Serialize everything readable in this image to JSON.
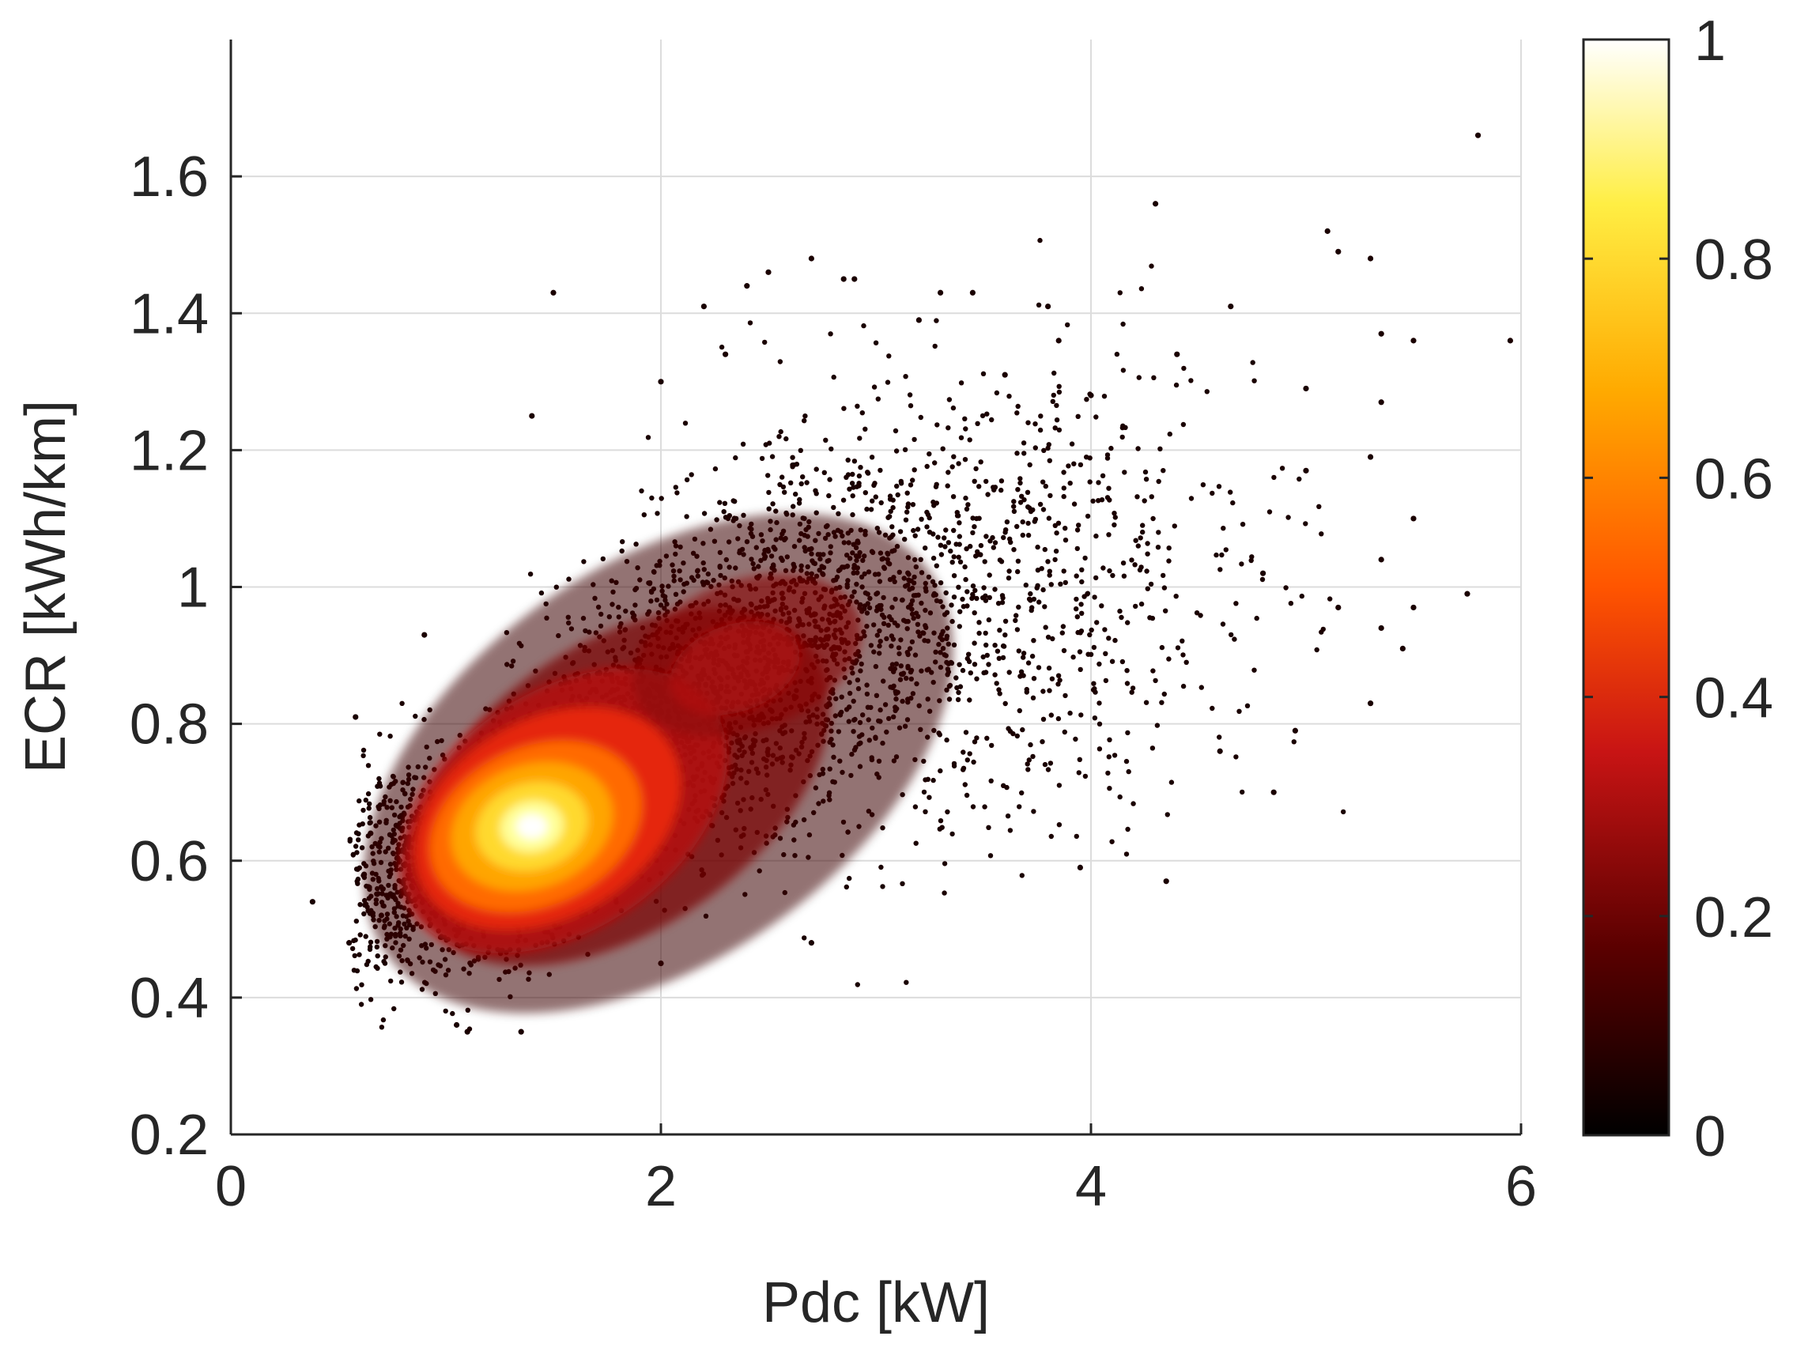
{
  "chart_data": {
    "type": "scatter",
    "xlabel": "Pdc [kW]",
    "ylabel": "ECR [kWh/km]",
    "xlim": [
      0,
      6
    ],
    "ylim": [
      0.2,
      1.8
    ],
    "xticks": [
      "0",
      "2",
      "4",
      "6"
    ],
    "yticks": [
      "0.2",
      "0.4",
      "0.6",
      "0.8",
      "1",
      "1.2",
      "1.4",
      "1.6"
    ],
    "grid": true,
    "colormap": "hot",
    "colorbar": {
      "label_ticks": [
        "0",
        "0.2",
        "0.4",
        "0.6",
        "0.8",
        "1"
      ],
      "range": [
        0,
        1
      ],
      "colors": [
        "#000000",
        "#5a0000",
        "#c81414",
        "#ff5500",
        "#ffaa00",
        "#ffee44",
        "#ffffff"
      ]
    },
    "density_description": "point density; peak near (1.4, 0.65)",
    "density_peak": {
      "x": 1.4,
      "y": 0.65
    },
    "sample_points": [
      [
        0.38,
        0.54
      ],
      [
        0.55,
        0.48
      ],
      [
        0.58,
        0.81
      ],
      [
        0.9,
        0.93
      ],
      [
        1.05,
        0.36
      ],
      [
        1.1,
        0.35
      ],
      [
        1.35,
        0.35
      ],
      [
        1.5,
        1.43
      ],
      [
        1.4,
        1.25
      ],
      [
        2.0,
        1.3
      ],
      [
        2.2,
        1.41
      ],
      [
        2.3,
        1.34
      ],
      [
        2.4,
        1.44
      ],
      [
        2.5,
        1.46
      ],
      [
        2.7,
        1.48
      ],
      [
        2.85,
        1.45
      ],
      [
        2.9,
        1.45
      ],
      [
        3.2,
        1.39
      ],
      [
        3.3,
        1.43
      ],
      [
        3.45,
        1.43
      ],
      [
        3.6,
        1.31
      ],
      [
        3.8,
        1.41
      ],
      [
        3.85,
        1.36
      ],
      [
        4.3,
        1.56
      ],
      [
        4.65,
        1.41
      ],
      [
        5.1,
        1.52
      ],
      [
        5.15,
        1.49
      ],
      [
        5.3,
        1.48
      ],
      [
        5.35,
        1.37
      ],
      [
        5.5,
        1.36
      ],
      [
        5.8,
        1.66
      ],
      [
        5.95,
        1.36
      ],
      [
        5.0,
        1.29
      ],
      [
        5.3,
        1.19
      ],
      [
        5.35,
        1.27
      ],
      [
        5.5,
        1.1
      ],
      [
        5.35,
        1.04
      ],
      [
        5.15,
        0.97
      ],
      [
        5.5,
        0.97
      ],
      [
        5.75,
        0.99
      ],
      [
        5.35,
        0.94
      ],
      [
        5.45,
        0.91
      ],
      [
        5.3,
        0.83
      ],
      [
        4.95,
        0.79
      ],
      [
        4.85,
        0.7
      ],
      [
        4.35,
        0.57
      ],
      [
        3.95,
        0.59
      ],
      [
        2.7,
        0.48
      ],
      [
        2.0,
        0.45
      ],
      [
        4.6,
        0.76
      ],
      [
        4.8,
        1.02
      ],
      [
        5.0,
        1.17
      ],
      [
        4.4,
        1.34
      ],
      [
        4.0,
        1.28
      ],
      [
        0.65,
        0.64
      ],
      [
        0.62,
        0.58
      ],
      [
        0.7,
        0.52
      ]
    ]
  }
}
